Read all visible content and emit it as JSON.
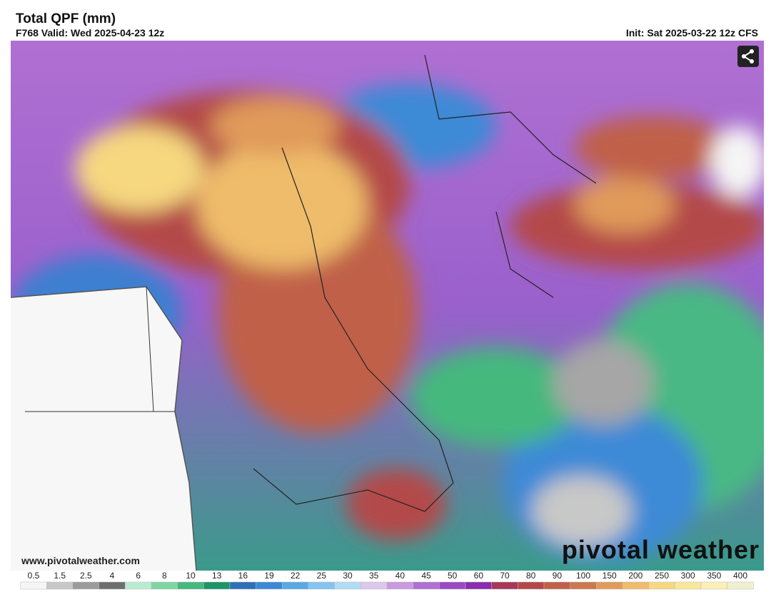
{
  "header": {
    "title": "Total QPF (mm)",
    "valid": "F768 Valid: Wed 2025-04-23 12z",
    "init": "Init: Sat 2025-03-22 12z CFS"
  },
  "watermark": {
    "url": "www.pivotalweather.com",
    "brand": "pivotal weather"
  },
  "legend": {
    "ticks": [
      0.5,
      1.5,
      2.5,
      4,
      6,
      8,
      10,
      13,
      16,
      19,
      22,
      25,
      30,
      35,
      40,
      45,
      50,
      60,
      70,
      80,
      90,
      100,
      150,
      200,
      250,
      300,
      350,
      400
    ],
    "colors": [
      "#f5f5f5",
      "#c8c8c8",
      "#9b9b9b",
      "#6e6e6e",
      "#b8ecd0",
      "#7fd6a4",
      "#44b87e",
      "#1e9468",
      "#2e6fb8",
      "#3c8ad6",
      "#5aa8e6",
      "#84c4f0",
      "#b0dcf6",
      "#dcc8ec",
      "#c89ae0",
      "#b070d2",
      "#9a48c4",
      "#8a2cb0",
      "#a8385a",
      "#b44848",
      "#c0604a",
      "#cc7850",
      "#e09a5a",
      "#eebc6a",
      "#f6d880",
      "#f8e89a",
      "#faf0b8",
      "#f0f0d0"
    ]
  }
}
